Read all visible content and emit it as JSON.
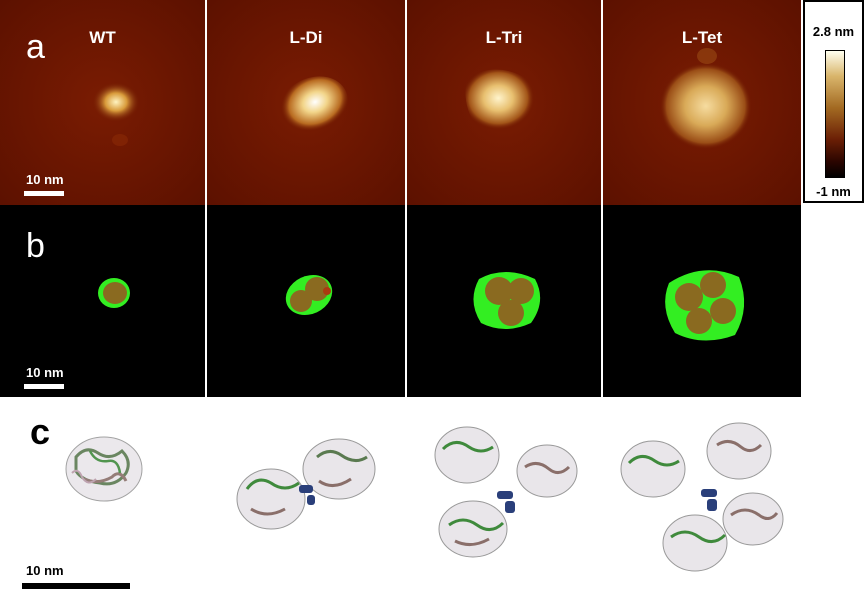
{
  "row_labels": {
    "a": "a",
    "b": "b",
    "c": "c"
  },
  "columns": [
    {
      "title": "WT"
    },
    {
      "title": "L-Di"
    },
    {
      "title": "L-Tri"
    },
    {
      "title": "L-Tet"
    }
  ],
  "scale_bars": {
    "a": "10 nm",
    "b": "10 nm",
    "c": "10 nm"
  },
  "colorbar": {
    "max_label": "2.8 nm",
    "min_label": "-1 nm"
  },
  "colors": {
    "afm_bg": "#6b1500",
    "mask_green": "#33ee22",
    "mask_brown": "#8a6a20"
  }
}
